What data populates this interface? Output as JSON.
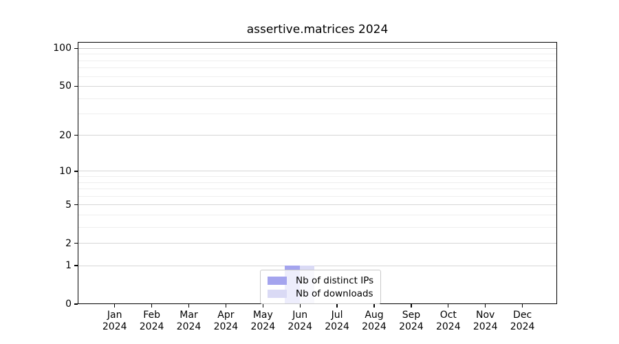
{
  "chart_data": {
    "type": "bar",
    "title": "assertive.matrices 2024",
    "x_categories": [
      {
        "month": "Jan",
        "year": "2024"
      },
      {
        "month": "Feb",
        "year": "2024"
      },
      {
        "month": "Mar",
        "year": "2024"
      },
      {
        "month": "Apr",
        "year": "2024"
      },
      {
        "month": "May",
        "year": "2024"
      },
      {
        "month": "Jun",
        "year": "2024"
      },
      {
        "month": "Jul",
        "year": "2024"
      },
      {
        "month": "Aug",
        "year": "2024"
      },
      {
        "month": "Sep",
        "year": "2024"
      },
      {
        "month": "Oct",
        "year": "2024"
      },
      {
        "month": "Nov",
        "year": "2024"
      },
      {
        "month": "Dec",
        "year": "2024"
      }
    ],
    "series": [
      {
        "name": "Nb of distinct IPs",
        "color": "#a4a4ee",
        "values": [
          0,
          0,
          0,
          0,
          0,
          1,
          0,
          0,
          0,
          0,
          0,
          0
        ]
      },
      {
        "name": "Nb of downloads",
        "color": "#dadaf5",
        "values": [
          0,
          0,
          0,
          0,
          0,
          1,
          0,
          0,
          0,
          0,
          0,
          0
        ]
      }
    ],
    "y_axis": {
      "scale": "log1p",
      "major_ticks": [
        0,
        1,
        2,
        5,
        10,
        20,
        50,
        100
      ],
      "minor_ticks": [
        3,
        4,
        6,
        7,
        8,
        9,
        30,
        40,
        60,
        70,
        80,
        90
      ],
      "range": [
        0,
        112
      ]
    },
    "legend": {
      "position": "lower center",
      "entries": [
        "Nb of distinct IPs",
        "Nb of downloads"
      ]
    },
    "grid": true
  },
  "colors": {
    "major_grid": "#d6d6d6",
    "minor_grid": "#eeeeee",
    "grid_100": "#c6c6c6",
    "axis": "#000000",
    "text": "#000000",
    "legend_border": "#c9c9c9"
  }
}
